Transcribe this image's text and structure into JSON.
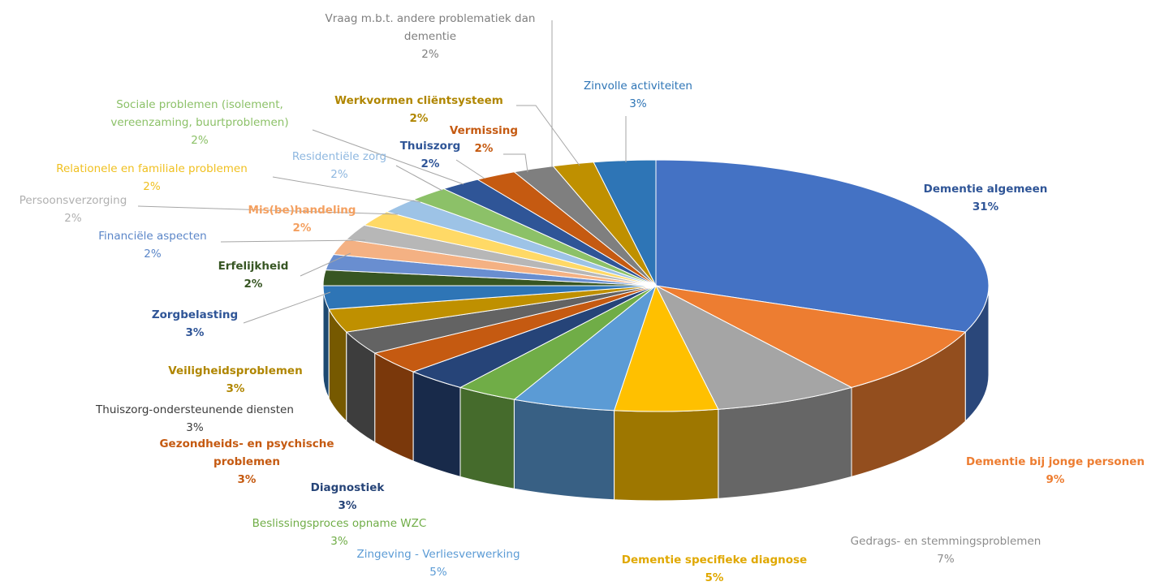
{
  "chart_data": {
    "type": "pie",
    "style": "3d-exploded",
    "title": "",
    "legend": "none",
    "slices": [
      {
        "label": "Dementie algemeen",
        "value": 31,
        "display": "31%",
        "color": "#4472C4"
      },
      {
        "label": "Dementie bij jonge personen",
        "value": 9,
        "display": "9%",
        "color": "#ED7D31"
      },
      {
        "label": "Gedrags- en stemmingsproblemen",
        "value": 7,
        "display": "7%",
        "color": "#A5A5A5"
      },
      {
        "label": "Dementie specifieke diagnose",
        "value": 5,
        "display": "5%",
        "color": "#FFC000"
      },
      {
        "label": "Zingeving - Verliesverwerking",
        "value": 5,
        "display": "5%",
        "color": "#5B9BD5"
      },
      {
        "label": "Beslissingsproces opname WZC",
        "value": 3,
        "display": "3%",
        "color": "#70AD47"
      },
      {
        "label": "Diagnostiek",
        "value": 3,
        "display": "3%",
        "color": "#264478"
      },
      {
        "label": "Gezondheids- en psychische problemen",
        "value": 3,
        "display": "3%",
        "color": "#C55A11"
      },
      {
        "label": "Thuiszorg-ondersteunende diensten",
        "value": 3,
        "display": "3%",
        "color": "#636363"
      },
      {
        "label": "Veiligheidsproblemen",
        "value": 3,
        "display": "3%",
        "color": "#BF9000"
      },
      {
        "label": "Zorgbelasting",
        "value": 3,
        "display": "3%",
        "color": "#2E75B6"
      },
      {
        "label": "Erfelijkheid",
        "value": 2,
        "display": "2%",
        "color": "#375623"
      },
      {
        "label": "Financiële aspecten",
        "value": 2,
        "display": "2%",
        "color": "#698ED0"
      },
      {
        "label": "Mis(be)handeling",
        "value": 2,
        "display": "2%",
        "color": "#F4B183"
      },
      {
        "label": "Persoonsverzorging",
        "value": 2,
        "display": "2%",
        "color": "#B7B7B7"
      },
      {
        "label": "Relationele en familiale problemen",
        "value": 2,
        "display": "2%",
        "color": "#FFD966"
      },
      {
        "label": "Residentiële zorg",
        "value": 2,
        "display": "2%",
        "color": "#9DC3E6"
      },
      {
        "label": "Sociale problemen (isolement, vereenzaming, buurtproblemen)",
        "value": 2,
        "display": "2%",
        "color": "#8CC168"
      },
      {
        "label": "Thuiszorg",
        "value": 2,
        "display": "2%",
        "color": "#2F5597"
      },
      {
        "label": "Vermissing",
        "value": 2,
        "display": "2%",
        "color": "#C55A11"
      },
      {
        "label": "Vraag m.b.t. andere problematiek dan dementie",
        "value": 2,
        "display": "2%",
        "color": "#7F7F7F"
      },
      {
        "label": "Werkvormen cliëntsysteem",
        "value": 2,
        "display": "2%",
        "color": "#BF9000"
      },
      {
        "label": "Zinvolle activiteiten",
        "value": 3,
        "display": "3%",
        "color": "#2E75B6"
      }
    ]
  }
}
